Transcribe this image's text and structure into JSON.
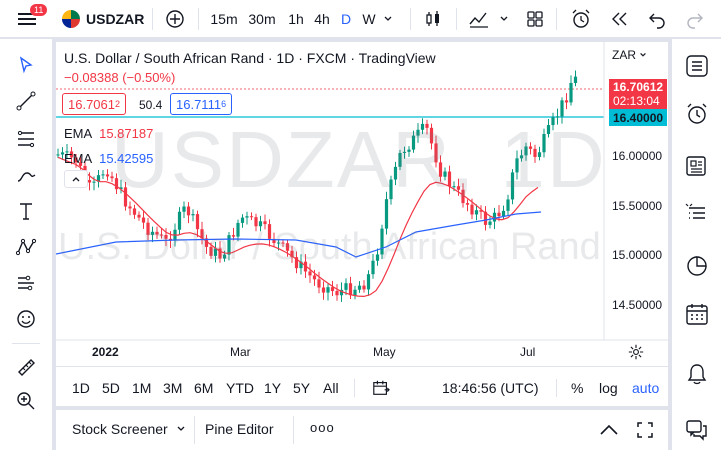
{
  "topbar": {
    "notif_count": "11",
    "symbol": "USDZAR",
    "intervals": [
      "15m",
      "30m",
      "1h",
      "4h",
      "D",
      "W"
    ],
    "active_interval": "D"
  },
  "legend": {
    "title": "U.S. Dollar / South African Rand · 1D · FXCM · TradingView",
    "change": "−0.08388 (−0.50%)",
    "bid": "16.7061",
    "bid_sup": "2",
    "spread": "50.4",
    "ask": "16.7111",
    "ask_sup": "6",
    "ema1_label": "EMA",
    "ema1_value": "15.87187",
    "ema2_label": "EMA",
    "ema2_value": "15.42595"
  },
  "chart": {
    "currency_menu": "ZAR",
    "watermark_big": "USDZAR, 1D",
    "watermark_small": "U.S. Dollar / South African Rand",
    "price_labels": [
      "16.00000",
      "15.50000",
      "15.00000",
      "14.50000"
    ],
    "last_price": "16.70612",
    "countdown": "02:13:04",
    "hline_price": "16.40000",
    "time_labels": [
      "2022",
      "Mar",
      "May",
      "Jul"
    ],
    "colors": {
      "up": "#089981",
      "down": "#f23645",
      "ema_fast": "#f23645",
      "ema_slow": "#2962ff",
      "hline": "#00bcd4"
    }
  },
  "bottombar": {
    "ranges": [
      "1D",
      "5D",
      "1M",
      "3M",
      "6M",
      "YTD",
      "1Y",
      "5Y",
      "All"
    ],
    "clock": "18:46:56 (UTC)",
    "pct": "%",
    "log": "log",
    "auto": "auto"
  },
  "panel": {
    "screener": "Stock Screener",
    "pine": "Pine Editor",
    "more": "ooo"
  }
}
